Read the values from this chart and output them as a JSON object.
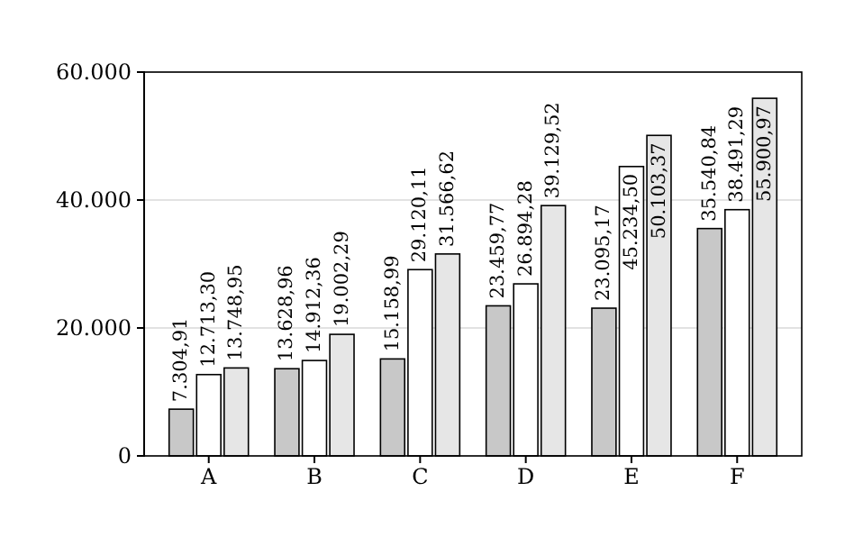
{
  "chart_data": {
    "type": "bar",
    "categories": [
      "A",
      "B",
      "C",
      "D",
      "E",
      "F"
    ],
    "series": [
      {
        "color": "#c8c8c8",
        "values": [
          7304.91,
          13628.96,
          15158.99,
          23459.77,
          23095.17,
          35540.84
        ],
        "value_labels": [
          "7.304,91",
          "13.628,96",
          "15.158,99",
          "23.459,77",
          "23.095,17",
          "35.540,84"
        ]
      },
      {
        "color": "#ffffff",
        "values": [
          12713.3,
          14912.36,
          29120.11,
          26894.28,
          45234.5,
          38491.29
        ],
        "value_labels": [
          "12.713,30",
          "14.912,36",
          "29.120,11",
          "26.894,28",
          "45.234,50",
          "38.491,29"
        ]
      },
      {
        "color": "#e6e6e6",
        "values": [
          13748.95,
          19002.29,
          31566.62,
          39129.52,
          50103.37,
          55900.97
        ],
        "value_labels": [
          "13.748,95",
          "19.002,29",
          "31.566,62",
          "39.129,52",
          "50.103,37",
          "55.900,97"
        ]
      }
    ],
    "ylim": [
      0,
      60000
    ],
    "yticks": [
      0,
      {
        "value": 20000,
        "label": "20.000"
      },
      {
        "value": 40000,
        "label": "40.000"
      },
      {
        "value": 60000,
        "label": "60.000"
      }
    ],
    "grid": "y"
  }
}
